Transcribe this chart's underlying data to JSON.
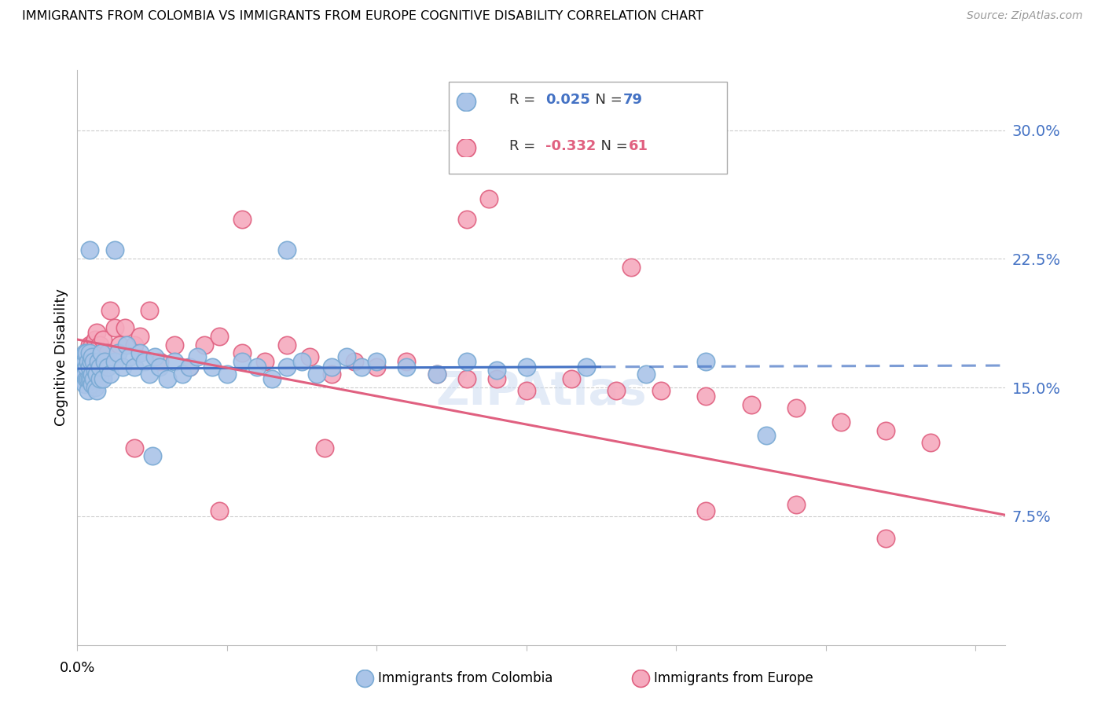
{
  "title": "IMMIGRANTS FROM COLOMBIA VS IMMIGRANTS FROM EUROPE COGNITIVE DISABILITY CORRELATION CHART",
  "source": "Source: ZipAtlas.com",
  "ylabel": "Cognitive Disability",
  "xlim": [
    0.0,
    0.62
  ],
  "ylim": [
    0.0,
    0.335
  ],
  "colombia_color": "#aac4e8",
  "colombia_edge": "#7aaad4",
  "europe_color": "#f5aabe",
  "europe_edge": "#e06080",
  "line_colombia_color": "#4472c4",
  "line_europe_color": "#e06080",
  "R_colombia": "0.025",
  "N_colombia": "79",
  "R_europe": "-0.332",
  "N_europe": "61",
  "col_slope": 0.003,
  "col_intercept": 0.161,
  "eur_slope": -0.165,
  "eur_intercept": 0.178,
  "ytick_vals": [
    0.075,
    0.15,
    0.225,
    0.3
  ],
  "ytick_labels": [
    "7.5%",
    "15.0%",
    "22.5%",
    "30.0%"
  ],
  "colombia_x": [
    0.002,
    0.003,
    0.003,
    0.004,
    0.004,
    0.004,
    0.005,
    0.005,
    0.005,
    0.005,
    0.006,
    0.006,
    0.006,
    0.007,
    0.007,
    0.007,
    0.008,
    0.008,
    0.008,
    0.009,
    0.009,
    0.01,
    0.01,
    0.01,
    0.011,
    0.011,
    0.012,
    0.012,
    0.013,
    0.013,
    0.014,
    0.015,
    0.015,
    0.016,
    0.017,
    0.018,
    0.02,
    0.022,
    0.025,
    0.027,
    0.03,
    0.033,
    0.035,
    0.038,
    0.042,
    0.045,
    0.048,
    0.052,
    0.055,
    0.06,
    0.065,
    0.07,
    0.075,
    0.08,
    0.09,
    0.1,
    0.11,
    0.12,
    0.13,
    0.14,
    0.15,
    0.16,
    0.17,
    0.18,
    0.19,
    0.2,
    0.22,
    0.24,
    0.26,
    0.28,
    0.3,
    0.34,
    0.38,
    0.42,
    0.46,
    0.14,
    0.05,
    0.025,
    0.008
  ],
  "colombia_y": [
    0.162,
    0.158,
    0.165,
    0.155,
    0.16,
    0.168,
    0.152,
    0.158,
    0.165,
    0.17,
    0.155,
    0.162,
    0.17,
    0.148,
    0.155,
    0.165,
    0.155,
    0.162,
    0.17,
    0.155,
    0.165,
    0.152,
    0.158,
    0.168,
    0.155,
    0.165,
    0.15,
    0.16,
    0.148,
    0.158,
    0.165,
    0.155,
    0.162,
    0.17,
    0.155,
    0.165,
    0.162,
    0.158,
    0.165,
    0.17,
    0.162,
    0.175,
    0.168,
    0.162,
    0.17,
    0.165,
    0.158,
    0.168,
    0.162,
    0.155,
    0.165,
    0.158,
    0.162,
    0.168,
    0.162,
    0.158,
    0.165,
    0.162,
    0.155,
    0.162,
    0.165,
    0.158,
    0.162,
    0.168,
    0.162,
    0.165,
    0.162,
    0.158,
    0.165,
    0.16,
    0.162,
    0.162,
    0.158,
    0.165,
    0.122,
    0.23,
    0.11,
    0.23,
    0.23
  ],
  "europe_x": [
    0.003,
    0.004,
    0.005,
    0.005,
    0.006,
    0.006,
    0.007,
    0.008,
    0.008,
    0.009,
    0.01,
    0.01,
    0.011,
    0.012,
    0.013,
    0.015,
    0.017,
    0.02,
    0.022,
    0.025,
    0.028,
    0.032,
    0.038,
    0.042,
    0.048,
    0.055,
    0.065,
    0.075,
    0.085,
    0.095,
    0.11,
    0.125,
    0.14,
    0.155,
    0.17,
    0.185,
    0.2,
    0.22,
    0.24,
    0.26,
    0.28,
    0.3,
    0.33,
    0.36,
    0.39,
    0.42,
    0.45,
    0.48,
    0.51,
    0.54,
    0.57,
    0.11,
    0.26,
    0.37,
    0.54,
    0.038,
    0.165,
    0.095,
    0.42,
    0.48,
    0.275
  ],
  "europe_y": [
    0.162,
    0.155,
    0.158,
    0.168,
    0.165,
    0.17,
    0.162,
    0.175,
    0.165,
    0.168,
    0.162,
    0.175,
    0.165,
    0.178,
    0.182,
    0.175,
    0.178,
    0.17,
    0.195,
    0.185,
    0.175,
    0.185,
    0.175,
    0.18,
    0.195,
    0.165,
    0.175,
    0.162,
    0.175,
    0.18,
    0.17,
    0.165,
    0.175,
    0.168,
    0.158,
    0.165,
    0.162,
    0.165,
    0.158,
    0.155,
    0.155,
    0.148,
    0.155,
    0.148,
    0.148,
    0.145,
    0.14,
    0.138,
    0.13,
    0.125,
    0.118,
    0.248,
    0.248,
    0.22,
    0.062,
    0.115,
    0.115,
    0.078,
    0.078,
    0.082,
    0.26
  ]
}
